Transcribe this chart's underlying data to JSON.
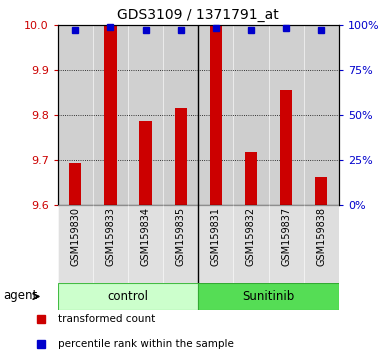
{
  "title": "GDS3109 / 1371791_at",
  "samples": [
    "GSM159830",
    "GSM159833",
    "GSM159834",
    "GSM159835",
    "GSM159831",
    "GSM159832",
    "GSM159837",
    "GSM159838"
  ],
  "bar_values": [
    9.693,
    9.997,
    9.786,
    9.815,
    10.0,
    9.718,
    9.855,
    9.663
  ],
  "percentile_values": [
    97,
    99,
    97,
    97,
    98,
    97,
    98,
    97
  ],
  "ylim_left": [
    9.6,
    10.0
  ],
  "ylim_right": [
    0,
    100
  ],
  "yticks_left": [
    9.6,
    9.7,
    9.8,
    9.9,
    10.0
  ],
  "yticks_right": [
    0,
    25,
    50,
    75,
    100
  ],
  "group_control": {
    "label": "control",
    "count": 4,
    "color_light": "#ccffcc",
    "color_dark": "#44bb44"
  },
  "group_sunitinib": {
    "label": "Sunitinib",
    "count": 4,
    "color_light": "#55dd55",
    "color_dark": "#33aa33"
  },
  "bar_color": "#cc0000",
  "percentile_color": "#0000cc",
  "bar_bottom": 9.6,
  "tick_label_color_left": "#cc0000",
  "tick_label_color_right": "#0000cc",
  "agent_label": "agent",
  "legend_red_label": "transformed count",
  "legend_blue_label": "percentile rank within the sample",
  "figsize": [
    3.85,
    3.54
  ],
  "dpi": 100
}
